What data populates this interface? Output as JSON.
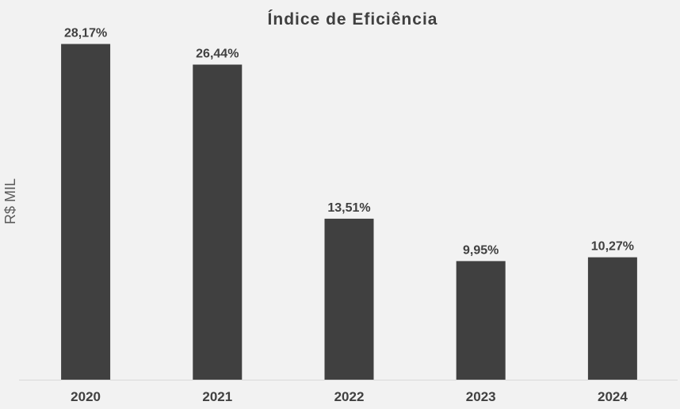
{
  "colors": {
    "background": "#f2f2f2",
    "bar": "#404040",
    "text": "#404040",
    "axis_label": "#595959",
    "baseline": "#d9d9d9"
  },
  "chart_data": {
    "type": "bar",
    "title": "Índice de Eficiência",
    "xlabel": "",
    "ylabel": "R$ MIL",
    "categories": [
      "2020",
      "2021",
      "2022",
      "2023",
      "2024"
    ],
    "values": [
      28.17,
      26.44,
      13.51,
      9.95,
      10.27
    ],
    "data_labels": [
      "28,17%",
      "26,44%",
      "13,51%",
      "9,95%",
      "10,27%"
    ],
    "ylim": [
      0,
      30
    ],
    "grid": false,
    "legend": "none",
    "y_axis_ticks_visible": false
  }
}
